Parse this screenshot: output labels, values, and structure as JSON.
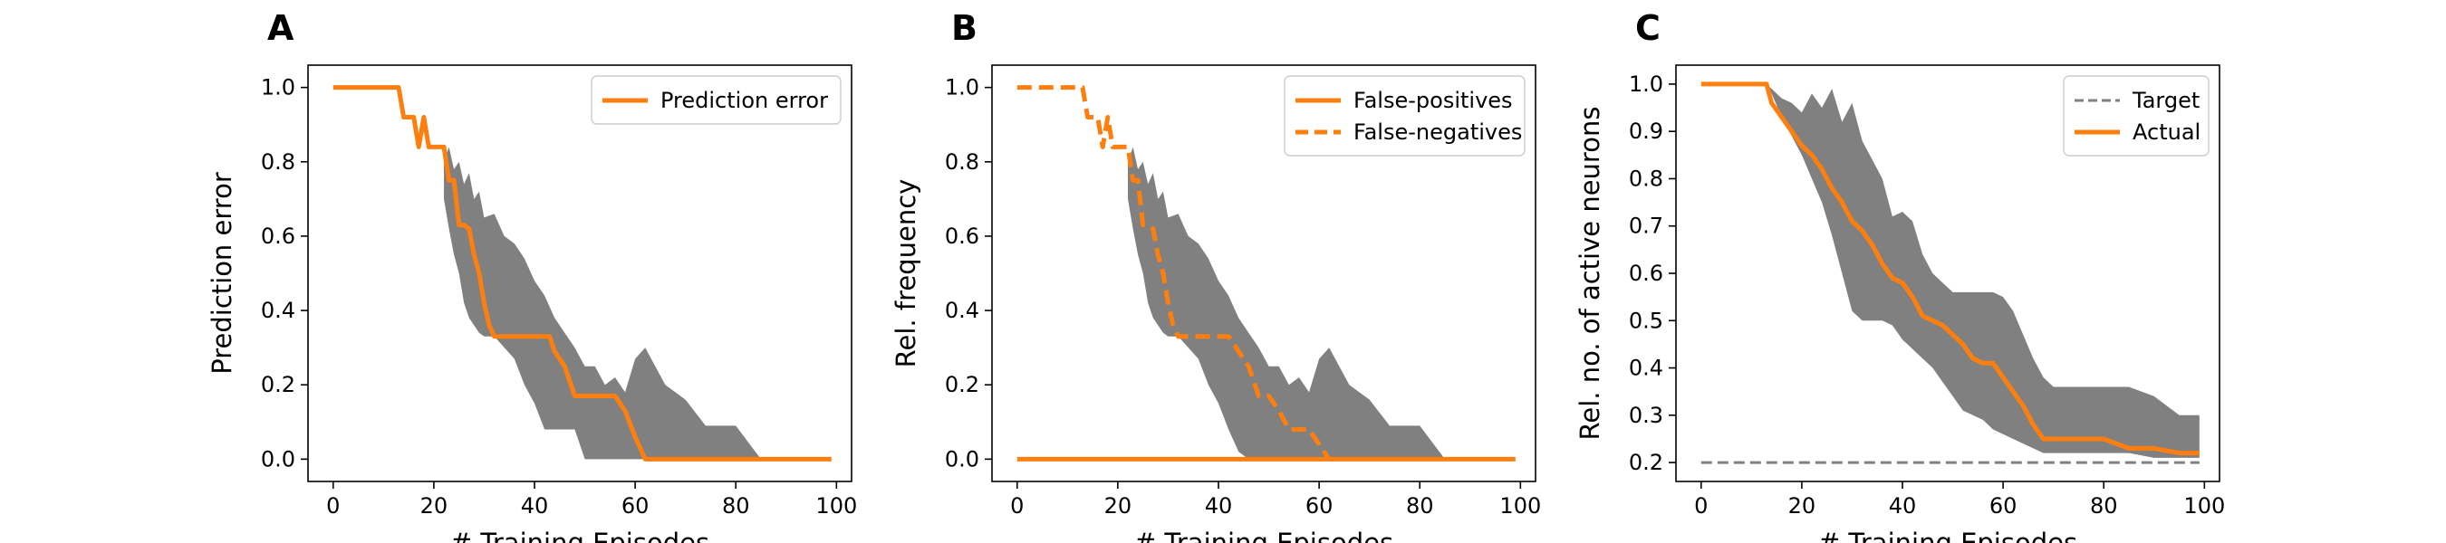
{
  "chart_data": [
    {
      "type": "line",
      "panel_label": "A",
      "xlabel": "# Training Episodes",
      "ylabel": "Prediction error",
      "xlim": [
        -5,
        103
      ],
      "ylim": [
        -0.06,
        1.06
      ],
      "xticks": [
        0,
        20,
        40,
        60,
        80,
        100
      ],
      "yticks": [
        0.0,
        0.2,
        0.4,
        0.6,
        0.8,
        1.0
      ],
      "ytick_labels": [
        "0.0",
        "0.2",
        "0.4",
        "0.6",
        "0.8",
        "1.0"
      ],
      "grid": false,
      "legend_position": "top-right",
      "band": {
        "color": "#808080",
        "x": [
          22,
          23,
          24,
          25,
          26,
          27,
          28,
          29,
          30,
          32,
          34,
          36,
          38,
          40,
          42,
          44,
          46,
          48,
          50,
          52,
          54,
          56,
          58,
          60,
          62,
          64,
          66,
          70,
          74,
          80,
          85
        ],
        "upper": [
          0.8,
          0.84,
          0.78,
          0.8,
          0.74,
          0.77,
          0.7,
          0.72,
          0.65,
          0.66,
          0.6,
          0.58,
          0.54,
          0.48,
          0.44,
          0.38,
          0.34,
          0.3,
          0.25,
          0.25,
          0.2,
          0.22,
          0.18,
          0.27,
          0.3,
          0.25,
          0.2,
          0.16,
          0.09,
          0.09,
          0.0
        ],
        "lower": [
          0.7,
          0.62,
          0.55,
          0.5,
          0.42,
          0.38,
          0.36,
          0.34,
          0.33,
          0.33,
          0.3,
          0.27,
          0.2,
          0.15,
          0.08,
          0.08,
          0.08,
          0.08,
          0.0,
          0.0,
          0.0,
          0.0,
          0.0,
          0.0,
          0.0,
          0.0,
          0.0,
          0.0,
          0.0,
          0.0,
          0.0
        ]
      },
      "series": [
        {
          "name": "Prediction error",
          "color": "#ff7f0e",
          "dash": "solid",
          "x": [
            0,
            13,
            14,
            16,
            17,
            18,
            19,
            20,
            22,
            23,
            24,
            25,
            26,
            27,
            28,
            29,
            30,
            31,
            32,
            34,
            36,
            38,
            40,
            42,
            43,
            44,
            46,
            48,
            50,
            52,
            54,
            56,
            58,
            60,
            62,
            64,
            70,
            80,
            90,
            99
          ],
          "y": [
            1.0,
            1.0,
            0.92,
            0.92,
            0.84,
            0.92,
            0.84,
            0.84,
            0.84,
            0.75,
            0.75,
            0.63,
            0.63,
            0.62,
            0.55,
            0.5,
            0.42,
            0.36,
            0.33,
            0.33,
            0.33,
            0.33,
            0.33,
            0.33,
            0.33,
            0.29,
            0.25,
            0.17,
            0.17,
            0.17,
            0.17,
            0.17,
            0.13,
            0.06,
            0.0,
            0.0,
            0.0,
            0.0,
            0.0,
            0.0
          ]
        }
      ]
    },
    {
      "type": "line",
      "panel_label": "B",
      "xlabel": "# Training Episodes",
      "ylabel": "Rel. frequency",
      "xlim": [
        -5,
        103
      ],
      "ylim": [
        -0.06,
        1.06
      ],
      "xticks": [
        0,
        20,
        40,
        60,
        80,
        100
      ],
      "yticks": [
        0.0,
        0.2,
        0.4,
        0.6,
        0.8,
        1.0
      ],
      "ytick_labels": [
        "0.0",
        "0.2",
        "0.4",
        "0.6",
        "0.8",
        "1.0"
      ],
      "grid": false,
      "legend_position": "top-right",
      "band": {
        "color": "#808080",
        "x": [
          22,
          23,
          24,
          25,
          26,
          27,
          28,
          29,
          30,
          32,
          34,
          36,
          38,
          40,
          42,
          44,
          46,
          48,
          50,
          52,
          54,
          56,
          58,
          60,
          62,
          64,
          66,
          70,
          74,
          80,
          85
        ],
        "upper": [
          0.8,
          0.84,
          0.78,
          0.8,
          0.74,
          0.77,
          0.7,
          0.72,
          0.65,
          0.66,
          0.6,
          0.58,
          0.54,
          0.48,
          0.44,
          0.38,
          0.34,
          0.3,
          0.25,
          0.25,
          0.2,
          0.22,
          0.18,
          0.27,
          0.3,
          0.25,
          0.2,
          0.16,
          0.09,
          0.09,
          0.0
        ],
        "lower": [
          0.7,
          0.62,
          0.55,
          0.5,
          0.42,
          0.38,
          0.36,
          0.34,
          0.33,
          0.33,
          0.3,
          0.27,
          0.2,
          0.15,
          0.08,
          0.02,
          0.0,
          0.0,
          0.0,
          0.0,
          0.0,
          0.0,
          0.0,
          0.0,
          0.0,
          0.0,
          0.0,
          0.0,
          0.0,
          0.0,
          0.0
        ]
      },
      "series": [
        {
          "name": "False-positives",
          "color": "#ff7f0e",
          "dash": "solid",
          "x": [
            0,
            20,
            40,
            60,
            80,
            99
          ],
          "y": [
            0.0,
            0.0,
            0.0,
            0.0,
            0.0,
            0.0
          ]
        },
        {
          "name": "False-negatives",
          "color": "#ff7f0e",
          "dash": "dashed",
          "x": [
            0,
            13,
            14,
            16,
            17,
            18,
            19,
            20,
            22,
            23,
            24,
            25,
            26,
            27,
            28,
            29,
            30,
            31,
            32,
            34,
            36,
            38,
            40,
            42,
            44,
            46,
            48,
            50,
            52,
            54,
            56,
            58,
            60,
            62
          ],
          "y": [
            1.0,
            1.0,
            0.92,
            0.92,
            0.84,
            0.92,
            0.84,
            0.84,
            0.84,
            0.75,
            0.75,
            0.63,
            0.63,
            0.62,
            0.55,
            0.5,
            0.42,
            0.36,
            0.33,
            0.33,
            0.33,
            0.33,
            0.33,
            0.33,
            0.29,
            0.25,
            0.17,
            0.17,
            0.13,
            0.08,
            0.08,
            0.08,
            0.04,
            0.0
          ]
        }
      ]
    },
    {
      "type": "line",
      "panel_label": "C",
      "xlabel": "# Training Episodes",
      "ylabel": "Rel. no. of active neurons",
      "xlim": [
        -5,
        103
      ],
      "ylim": [
        0.16,
        1.04
      ],
      "xticks": [
        0,
        20,
        40,
        60,
        80,
        100
      ],
      "yticks": [
        0.2,
        0.3,
        0.4,
        0.5,
        0.6,
        0.7,
        0.8,
        0.9,
        1.0
      ],
      "ytick_labels": [
        "0.2",
        "0.3",
        "0.4",
        "0.5",
        "0.6",
        "0.7",
        "0.8",
        "0.9",
        "1.0"
      ],
      "grid": false,
      "legend_position": "top-right",
      "band": {
        "color": "#808080",
        "x": [
          13,
          14,
          16,
          18,
          20,
          22,
          24,
          26,
          28,
          30,
          32,
          34,
          36,
          38,
          40,
          42,
          44,
          46,
          48,
          50,
          52,
          54,
          56,
          58,
          60,
          62,
          64,
          66,
          68,
          70,
          75,
          80,
          85,
          90,
          95,
          99
        ],
        "upper": [
          1.0,
          0.99,
          0.97,
          0.96,
          0.94,
          0.98,
          0.95,
          0.99,
          0.92,
          0.96,
          0.88,
          0.84,
          0.8,
          0.72,
          0.73,
          0.71,
          0.64,
          0.6,
          0.58,
          0.56,
          0.56,
          0.56,
          0.56,
          0.56,
          0.55,
          0.52,
          0.47,
          0.42,
          0.38,
          0.36,
          0.36,
          0.36,
          0.36,
          0.34,
          0.3,
          0.3
        ],
        "lower": [
          1.0,
          0.98,
          0.93,
          0.89,
          0.85,
          0.8,
          0.75,
          0.68,
          0.6,
          0.52,
          0.5,
          0.5,
          0.5,
          0.49,
          0.46,
          0.44,
          0.42,
          0.4,
          0.37,
          0.34,
          0.31,
          0.3,
          0.29,
          0.27,
          0.26,
          0.25,
          0.24,
          0.23,
          0.22,
          0.22,
          0.22,
          0.22,
          0.22,
          0.21,
          0.21,
          0.21
        ]
      },
      "series": [
        {
          "name": "Target",
          "color": "#808080",
          "dash": "dashed",
          "x": [
            0,
            99
          ],
          "y": [
            0.2,
            0.2
          ]
        },
        {
          "name": "Actual",
          "color": "#ff7f0e",
          "dash": "solid",
          "x": [
            0,
            13,
            14,
            16,
            18,
            20,
            22,
            24,
            26,
            28,
            30,
            32,
            34,
            36,
            38,
            40,
            42,
            44,
            46,
            48,
            50,
            52,
            54,
            56,
            58,
            60,
            62,
            64,
            66,
            68,
            70,
            75,
            80,
            85,
            90,
            95,
            99
          ],
          "y": [
            1.0,
            1.0,
            0.96,
            0.93,
            0.9,
            0.87,
            0.85,
            0.82,
            0.78,
            0.75,
            0.71,
            0.69,
            0.66,
            0.62,
            0.59,
            0.58,
            0.55,
            0.51,
            0.5,
            0.49,
            0.47,
            0.45,
            0.42,
            0.41,
            0.41,
            0.38,
            0.35,
            0.32,
            0.28,
            0.25,
            0.25,
            0.25,
            0.25,
            0.23,
            0.23,
            0.22,
            0.22
          ]
        }
      ]
    }
  ]
}
